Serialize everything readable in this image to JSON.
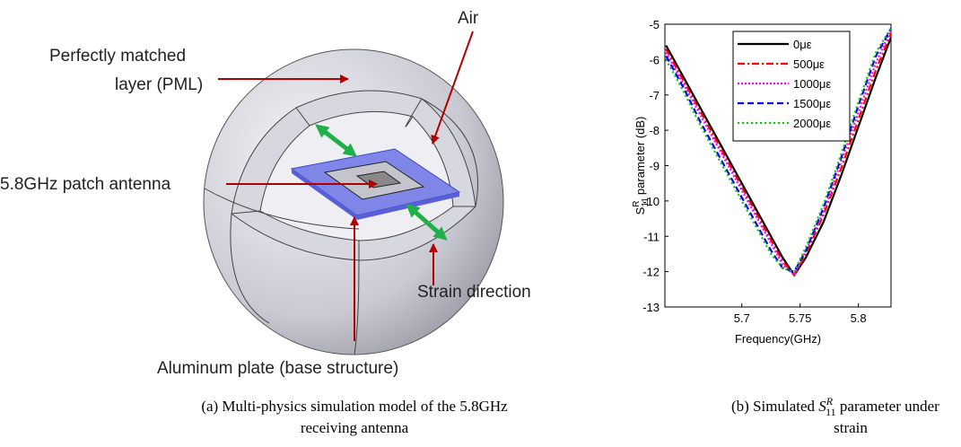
{
  "diagram": {
    "air": "Air",
    "pml": [
      "Perfectly matched",
      "layer (PML)"
    ],
    "patch": "5.8GHz patch antenna",
    "strain": "Strain direction",
    "plate": "Aluminum plate (base structure)"
  },
  "captions": {
    "a": [
      "(a)  Multi-physics simulation model of the 5.8GHz",
      "receiving  antenna"
    ],
    "b": {
      "prefix": "(b)   Simulated",
      "symbol": "S",
      "superscript": "R",
      "subscript": "11",
      "suffix": "parameter under",
      "line2": "strain"
    }
  },
  "chart_data": {
    "type": "line",
    "xlabel": "Frequency(GHz)",
    "ylabel": {
      "symbol": "S",
      "superscript": "R",
      "subscript": "11",
      "text": "parameter (dB)"
    },
    "x": [
      5.635,
      5.65,
      5.665,
      5.68,
      5.695,
      5.71,
      5.725,
      5.735,
      5.745,
      5.755,
      5.77,
      5.785,
      5.8,
      5.815,
      5.83
    ],
    "series": [
      {
        "name": "0με",
        "color": "#000000",
        "dash": "none",
        "values": [
          -5.6,
          -6.5,
          -7.4,
          -8.3,
          -9.2,
          -10.1,
          -11.0,
          -11.6,
          -12.1,
          -11.6,
          -10.6,
          -9.3,
          -7.9,
          -6.5,
          -5.2
        ]
      },
      {
        "name": "500με",
        "color": "#ff0000",
        "dash": "8,3,2,3",
        "values": [
          -5.7,
          -6.6,
          -7.5,
          -8.4,
          -9.3,
          -10.2,
          -11.1,
          -11.7,
          -12.1,
          -11.5,
          -10.4,
          -9.1,
          -7.7,
          -6.3,
          -5.1
        ]
      },
      {
        "name": "1000με",
        "color": "#ff00ff",
        "dash": "2,2",
        "values": [
          -5.8,
          -6.7,
          -7.6,
          -8.5,
          -9.4,
          -10.3,
          -11.2,
          -11.8,
          -12.1,
          -11.4,
          -10.3,
          -8.9,
          -7.5,
          -6.1,
          -5.0
        ]
      },
      {
        "name": "1500με",
        "color": "#0000ff",
        "dash": "7,4",
        "values": [
          -5.9,
          -6.8,
          -7.8,
          -8.7,
          -9.6,
          -10.5,
          -11.4,
          -11.9,
          -12.0,
          -11.4,
          -10.2,
          -8.8,
          -7.3,
          -5.9,
          -5.0
        ]
      },
      {
        "name": "2000με",
        "color": "#00cc00",
        "dash": "2,3",
        "values": [
          -6.0,
          -6.9,
          -7.9,
          -8.8,
          -9.7,
          -10.6,
          -11.5,
          -11.9,
          -12.0,
          -11.3,
          -10.1,
          -8.7,
          -7.2,
          -5.8,
          -5.0
        ]
      }
    ],
    "xlim": [
      5.634,
      5.828
    ],
    "ylim": [
      -13,
      -5
    ],
    "xticks": [
      5.7,
      5.75,
      5.8
    ],
    "yticks": [
      -13,
      -12,
      -11,
      -10,
      -9,
      -8,
      -7,
      -6,
      -5
    ],
    "legend": "upper-right"
  }
}
